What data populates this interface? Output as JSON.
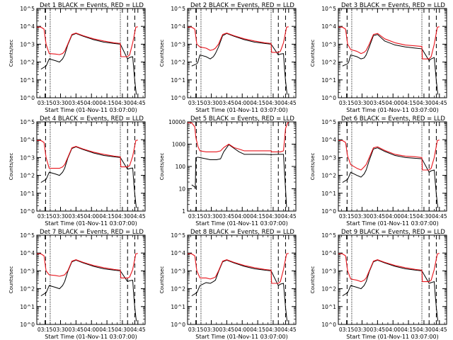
{
  "chart_data": {
    "type": "line",
    "x_ticks": [
      "03:15",
      "03:30",
      "03:45",
      "04:00",
      "04:15",
      "04:30",
      "04:45"
    ],
    "xlabel": "Start Time (01-Nov-11 03:07:00)",
    "ylabel": "Counts/sec",
    "y_scale": "log",
    "series_names": [
      "Events",
      "LLD"
    ],
    "series_colors": {
      "Events": "#000000",
      "LLD": "#e8141c"
    },
    "x_range_minutes": [
      0,
      105
    ],
    "x_tick_minutes": [
      8,
      23,
      38,
      53,
      68,
      83,
      98
    ],
    "dotted_markers_min": [
      13,
      81
    ],
    "dashed_markers_min": [
      8.5,
      88,
      95
    ],
    "panels": [
      {
        "title": "Det 1 BLACK = Events, RED = LLD",
        "ylim": [
          1,
          100000
        ],
        "y_tick_labels": [
          "10^0",
          "10^1",
          "10^2",
          "10^3",
          "10^4",
          "10^5"
        ],
        "lld_x": [
          0,
          4,
          7,
          9,
          12,
          18,
          22,
          25,
          27,
          30,
          34,
          38,
          45,
          55,
          65,
          75,
          81,
          81.5,
          88,
          90,
          93,
          96,
          98
        ],
        "lld_y": [
          9000,
          9000,
          7000,
          1000,
          300,
          280,
          260,
          300,
          400,
          1000,
          3500,
          4200,
          3000,
          2000,
          1500,
          1200,
          1100,
          200,
          200,
          250,
          1200,
          9000,
          9500
        ],
        "events_x": [
          4,
          9,
          10,
          12,
          18,
          22,
          25,
          27,
          30,
          34,
          38,
          45,
          55,
          65,
          75,
          81,
          88,
          90,
          93,
          94,
          95,
          96.5
        ],
        "events_y": [
          40,
          60,
          80,
          150,
          120,
          100,
          150,
          250,
          900,
          3200,
          4000,
          2800,
          1800,
          1300,
          1100,
          1000,
          150,
          180,
          200,
          40,
          9,
          1.5
        ]
      },
      {
        "title": "Det 2 BLACK = Events, RED = LLD",
        "ylim": [
          1,
          100000
        ],
        "y_tick_labels": [
          "10^0",
          "10^1",
          "10^2",
          "10^3",
          "10^4",
          "10^5"
        ],
        "lld_x": [
          0,
          4,
          7,
          9,
          12,
          18,
          22,
          25,
          27,
          30,
          34,
          38,
          45,
          55,
          65,
          75,
          81,
          81.5,
          88,
          90,
          93,
          96,
          98
        ],
        "lld_y": [
          9000,
          9000,
          7000,
          1000,
          700,
          600,
          450,
          500,
          600,
          1000,
          3500,
          4200,
          3000,
          2000,
          1500,
          1200,
          1100,
          350,
          350,
          400,
          1200,
          9000,
          9500
        ],
        "events_x": [
          4,
          9,
          10,
          12,
          18,
          22,
          25,
          27,
          30,
          34,
          38,
          45,
          55,
          65,
          75,
          81,
          88,
          90,
          93,
          94,
          95,
          96.5
        ],
        "events_y": [
          60,
          80,
          100,
          250,
          200,
          150,
          200,
          300,
          700,
          3000,
          4000,
          2800,
          1800,
          1300,
          1100,
          1000,
          250,
          280,
          300,
          40,
          9,
          1.5
        ]
      },
      {
        "title": "Det 3 BLACK = Events, RED = LLD",
        "ylim": [
          1,
          100000
        ],
        "y_tick_labels": [
          "10^0",
          "10^1",
          "10^2",
          "10^3",
          "10^4",
          "10^5"
        ],
        "lld_x": [
          0,
          4,
          7,
          9,
          12,
          18,
          22,
          25,
          27,
          30,
          34,
          38,
          45,
          55,
          65,
          75,
          81,
          81.5,
          88,
          90,
          93,
          96,
          98
        ],
        "lld_y": [
          9000,
          9000,
          7000,
          1000,
          500,
          400,
          300,
          350,
          450,
          1000,
          3500,
          4000,
          2000,
          1200,
          900,
          800,
          750,
          150,
          150,
          200,
          1000,
          9000,
          9500
        ],
        "events_x": [
          4,
          9,
          10,
          12,
          18,
          22,
          25,
          27,
          30,
          34,
          38,
          45,
          55,
          65,
          75,
          81,
          88,
          90,
          93,
          94,
          95,
          96.5
        ],
        "events_y": [
          60,
          80,
          100,
          250,
          200,
          150,
          170,
          250,
          700,
          3000,
          3500,
          1500,
          900,
          700,
          600,
          550,
          120,
          150,
          180,
          40,
          9,
          1.5
        ]
      },
      {
        "title": "Det 4 BLACK = Events, RED = LLD",
        "ylim": [
          1,
          100000
        ],
        "y_tick_labels": [
          "10^0",
          "10^1",
          "10^2",
          "10^3",
          "10^4",
          "10^5"
        ],
        "lld_x": [
          0,
          4,
          7,
          9,
          12,
          18,
          22,
          25,
          27,
          30,
          34,
          38,
          45,
          55,
          65,
          75,
          81,
          81.5,
          88,
          90,
          93,
          96,
          98
        ],
        "lld_y": [
          9000,
          9000,
          7000,
          1000,
          250,
          250,
          250,
          300,
          400,
          1000,
          3500,
          4200,
          3000,
          2000,
          1500,
          1200,
          1100,
          300,
          300,
          350,
          1200,
          9000,
          9500
        ],
        "events_x": [
          4,
          9,
          10,
          12,
          18,
          22,
          25,
          27,
          30,
          34,
          38,
          45,
          55,
          65,
          75,
          81,
          88,
          90,
          93,
          94,
          95,
          96.5
        ],
        "events_y": [
          40,
          60,
          80,
          150,
          120,
          100,
          150,
          250,
          900,
          3200,
          4000,
          2800,
          1800,
          1300,
          1100,
          1000,
          220,
          240,
          260,
          40,
          9,
          1.5
        ]
      },
      {
        "title": "Det 5 BLACK = Events, RED = LLD",
        "ylim": [
          1,
          10000
        ],
        "y_tick_labels": [
          "1",
          "10",
          "100",
          "1000",
          "10000"
        ],
        "lld_x": [
          0,
          4,
          7,
          8,
          10,
          12,
          18,
          22,
          25,
          28,
          32,
          35,
          40,
          45,
          50,
          55,
          65,
          75,
          81,
          81.5,
          88,
          90,
          93,
          95,
          97,
          98
        ],
        "lld_y": [
          9000,
          9000,
          6000,
          2000,
          800,
          500,
          450,
          450,
          450,
          450,
          500,
          700,
          1000,
          700,
          600,
          500,
          500,
          500,
          500,
          450,
          450,
          450,
          500,
          5000,
          9000,
          9500
        ],
        "events_x": [
          4,
          7,
          7.5,
          8,
          10,
          12,
          18,
          22,
          25,
          28,
          32,
          35,
          40,
          45,
          50,
          55,
          65,
          75,
          81,
          88,
          90,
          93,
          94,
          95,
          96
        ],
        "events_y": [
          15,
          12,
          10,
          250,
          260,
          250,
          220,
          200,
          200,
          200,
          220,
          450,
          950,
          650,
          450,
          350,
          350,
          350,
          340,
          350,
          350,
          350,
          50,
          10,
          1.5
        ]
      },
      {
        "title": "Det 6 BLACK = Events, RED = LLD",
        "ylim": [
          1,
          100000
        ],
        "y_tick_labels": [
          "10^0",
          "10^1",
          "10^2",
          "10^3",
          "10^4",
          "10^5"
        ],
        "lld_x": [
          0,
          4,
          7,
          9,
          12,
          18,
          22,
          25,
          27,
          30,
          34,
          38,
          45,
          55,
          65,
          75,
          81,
          81.5,
          88,
          90,
          93,
          96,
          98
        ],
        "lld_y": [
          9000,
          9000,
          7000,
          1200,
          400,
          250,
          200,
          300,
          400,
          1000,
          3500,
          4000,
          2500,
          1500,
          1200,
          1100,
          1000,
          200,
          200,
          250,
          1000,
          9000,
          9500
        ],
        "events_x": [
          4,
          9,
          10,
          12,
          18,
          22,
          25,
          27,
          30,
          34,
          38,
          45,
          55,
          65,
          75,
          81,
          88,
          90,
          93,
          94,
          95,
          96.5
        ],
        "events_y": [
          40,
          60,
          80,
          150,
          100,
          80,
          120,
          200,
          700,
          3000,
          3500,
          2200,
          1300,
          1000,
          900,
          850,
          150,
          180,
          200,
          40,
          9,
          1.5
        ]
      },
      {
        "title": "Det 7 BLACK = Events, RED = LLD",
        "ylim": [
          1,
          100000
        ],
        "y_tick_labels": [
          "10^0",
          "10^1",
          "10^2",
          "10^3",
          "10^4",
          "10^5"
        ],
        "lld_x": [
          0,
          4,
          7,
          9,
          12,
          18,
          22,
          25,
          27,
          30,
          34,
          38,
          45,
          55,
          65,
          75,
          81,
          81.5,
          88,
          90,
          93,
          96,
          98
        ],
        "lld_y": [
          9000,
          9000,
          7000,
          1000,
          600,
          550,
          500,
          550,
          600,
          1000,
          3500,
          4200,
          3000,
          2000,
          1500,
          1200,
          1100,
          400,
          400,
          450,
          1200,
          9000,
          9500
        ],
        "events_x": [
          4,
          9,
          10,
          12,
          18,
          22,
          25,
          27,
          30,
          34,
          38,
          45,
          55,
          65,
          75,
          81,
          88,
          90,
          93,
          94,
          95,
          96.5
        ],
        "events_y": [
          40,
          60,
          80,
          150,
          120,
          100,
          150,
          250,
          900,
          3200,
          4000,
          2800,
          1800,
          1300,
          1100,
          1000,
          250,
          280,
          300,
          40,
          9,
          1.5
        ]
      },
      {
        "title": "Det 8 BLACK = Events, RED = LLD",
        "ylim": [
          1,
          100000
        ],
        "y_tick_labels": [
          "10^0",
          "10^1",
          "10^2",
          "10^3",
          "10^4",
          "10^5"
        ],
        "lld_x": [
          0,
          4,
          7,
          9,
          12,
          18,
          22,
          25,
          27,
          30,
          34,
          38,
          45,
          55,
          65,
          75,
          81,
          81.5,
          88,
          90,
          93,
          96,
          98
        ],
        "lld_y": [
          9000,
          9000,
          7000,
          1000,
          400,
          400,
          350,
          400,
          450,
          1000,
          3500,
          4200,
          3000,
          2000,
          1500,
          1200,
          1100,
          200,
          200,
          250,
          1200,
          9000,
          9500
        ],
        "events_x": [
          4,
          9,
          10,
          12,
          18,
          22,
          25,
          27,
          30,
          34,
          38,
          45,
          55,
          65,
          75,
          81,
          88,
          90,
          93,
          94,
          95,
          96.5
        ],
        "events_y": [
          40,
          60,
          80,
          150,
          220,
          200,
          250,
          300,
          900,
          3200,
          4000,
          2800,
          1800,
          1300,
          1100,
          1000,
          150,
          180,
          200,
          40,
          9,
          1.5
        ]
      },
      {
        "title": "Det 9 BLACK = Events, RED = LLD",
        "ylim": [
          1,
          100000
        ],
        "y_tick_labels": [
          "10^0",
          "10^1",
          "10^2",
          "10^3",
          "10^4",
          "10^5"
        ],
        "lld_x": [
          0,
          4,
          7,
          9,
          12,
          18,
          22,
          25,
          27,
          30,
          34,
          38,
          45,
          55,
          65,
          75,
          81,
          81.5,
          88,
          90,
          93,
          96,
          98
        ],
        "lld_y": [
          9000,
          9000,
          7000,
          1000,
          350,
          300,
          250,
          300,
          400,
          1000,
          3500,
          4200,
          3000,
          2000,
          1500,
          1200,
          1100,
          250,
          250,
          300,
          1200,
          9000,
          9500
        ],
        "events_x": [
          4,
          9,
          10,
          12,
          18,
          22,
          25,
          27,
          30,
          34,
          38,
          45,
          55,
          65,
          75,
          81,
          88,
          90,
          93,
          94,
          95,
          96.5
        ],
        "events_y": [
          40,
          60,
          80,
          150,
          120,
          100,
          150,
          250,
          900,
          3200,
          4000,
          2800,
          1800,
          1300,
          1100,
          1000,
          200,
          220,
          250,
          40,
          9,
          1.5
        ]
      }
    ]
  }
}
